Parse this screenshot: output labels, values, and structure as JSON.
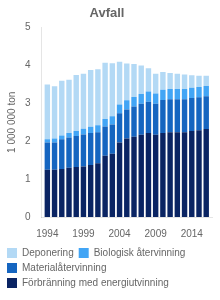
{
  "chart_data": {
    "type": "bar",
    "stacked": true,
    "title": "Avfall",
    "ylabel": "1 000 000 ton",
    "x": [
      1994,
      1995,
      1996,
      1997,
      1998,
      1999,
      2000,
      2001,
      2002,
      2003,
      2004,
      2005,
      2006,
      2007,
      2008,
      2009,
      2010,
      2011,
      2012,
      2013,
      2014,
      2015,
      2016
    ],
    "series": [
      {
        "name": "Förbränning med energiutvinning",
        "color": "#0a2463",
        "values": [
          1.25,
          1.25,
          1.27,
          1.3,
          1.32,
          1.33,
          1.37,
          1.42,
          1.62,
          1.67,
          1.97,
          2.07,
          2.12,
          2.17,
          2.22,
          2.17,
          2.22,
          2.24,
          2.24,
          2.24,
          2.27,
          2.29,
          2.32
        ]
      },
      {
        "name": "Materialåtervinning",
        "color": "#1565c0",
        "values": [
          0.72,
          0.72,
          0.78,
          0.8,
          0.82,
          0.85,
          0.85,
          0.82,
          0.77,
          0.77,
          0.77,
          0.77,
          0.8,
          0.82,
          0.82,
          0.82,
          0.87,
          0.87,
          0.87,
          0.87,
          0.87,
          0.87,
          0.87
        ]
      },
      {
        "name": "Biologisk återvinning",
        "color": "#42a5f5",
        "values": [
          0.08,
          0.1,
          0.1,
          0.12,
          0.13,
          0.15,
          0.16,
          0.18,
          0.2,
          0.22,
          0.23,
          0.24,
          0.25,
          0.26,
          0.27,
          0.27,
          0.27,
          0.27,
          0.27,
          0.27,
          0.27,
          0.27,
          0.27
        ]
      },
      {
        "name": "Deponering",
        "color": "#b3d9f5",
        "values": [
          1.45,
          1.38,
          1.45,
          1.4,
          1.48,
          1.45,
          1.5,
          1.48,
          1.48,
          1.4,
          1.13,
          0.97,
          0.87,
          0.75,
          0.62,
          0.52,
          0.47,
          0.42,
          0.4,
          0.38,
          0.33,
          0.3,
          0.27
        ]
      }
    ],
    "xlim": [
      1993.2,
      2016.8
    ],
    "xticks": [
      1994,
      1999,
      2004,
      2009,
      2014
    ],
    "ylim": [
      0,
      5
    ],
    "yticks": [
      0,
      1,
      2,
      3,
      4,
      5
    ],
    "grid": false,
    "legend": "lower left"
  }
}
